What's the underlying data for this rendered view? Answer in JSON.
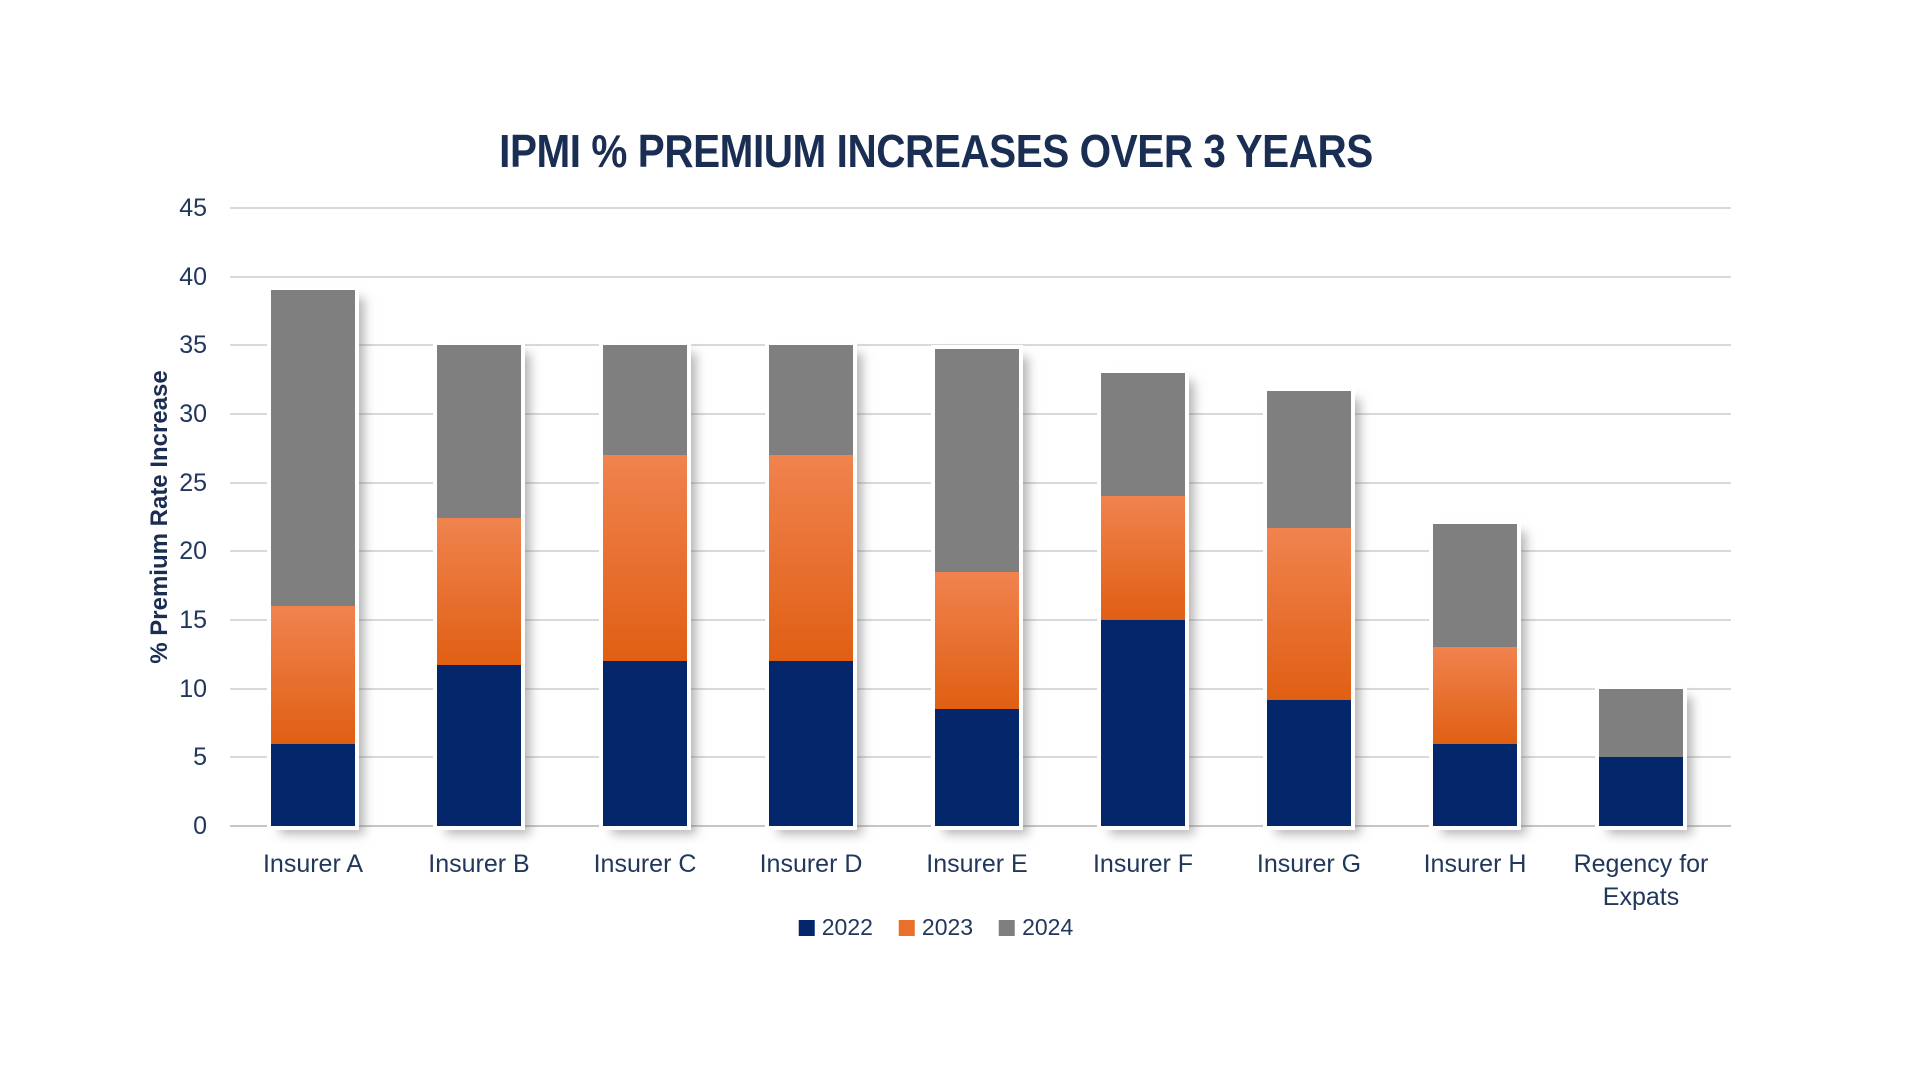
{
  "title": "IPMI % PREMIUM INCREASES OVER 3 YEARS",
  "colors": {
    "series_2022": "#04266B",
    "series_2023_solid": "#E8702B",
    "series_2023_gradient_top": "#F0834F",
    "series_2023_gradient_bottom": "#E05F13",
    "series_2024": "#7F7F7F",
    "text_navy": "#21375C",
    "title_navy": "#1A2D52",
    "gridline": "#D9D9D9"
  },
  "chart_data": {
    "type": "bar",
    "stacked": true,
    "title": "IPMI % PREMIUM INCREASES OVER 3 YEARS",
    "xlabel": "",
    "ylabel": "% Premium Rate Increase",
    "ylim": [
      0,
      45
    ],
    "ytick_step": 5,
    "yticks": [
      0,
      5,
      10,
      15,
      20,
      25,
      30,
      35,
      40,
      45
    ],
    "grid": "horizontal",
    "legend_position": "bottom",
    "categories": [
      "Insurer A",
      "Insurer B",
      "Insurer C",
      "Insurer D",
      "Insurer E",
      "Insurer F",
      "Insurer G",
      "Insurer H",
      "Regency for Expats"
    ],
    "series": [
      {
        "name": "2022",
        "color": "#04266B",
        "values": [
          6,
          11.7,
          12,
          12,
          8.5,
          15,
          9.2,
          6,
          5
        ]
      },
      {
        "name": "2023",
        "color": "#E8702B",
        "values": [
          10,
          10.7,
          15,
          15,
          10,
          9,
          12.5,
          7,
          0
        ]
      },
      {
        "name": "2024",
        "color": "#7F7F7F",
        "values": [
          23,
          12.6,
          8,
          8,
          16.2,
          9,
          10,
          9,
          5
        ]
      }
    ],
    "stack_totals": [
      39,
      35,
      35,
      35,
      34.7,
      33,
      31.7,
      22,
      10
    ]
  }
}
